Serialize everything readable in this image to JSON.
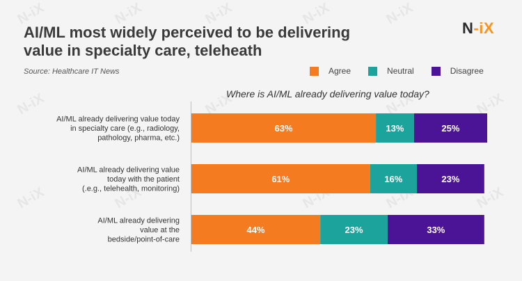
{
  "header": {
    "title_line1": "AI/ML most widely perceived to be delivering",
    "title_line2": "value in specialty care, teleheath",
    "brand_left": "N",
    "brand_right": "-iX",
    "source": "Source:  Healthcare IT News"
  },
  "watermark_text": "N-iX",
  "chart_data": {
    "type": "bar",
    "orientation": "horizontal",
    "stacked": true,
    "title": "Where is AI/ML already delivering value today?",
    "categories": [
      [
        "AI/ML already delivering value today",
        "in specialty care (e.g., radiology,",
        "pathology, pharma, etc.)"
      ],
      [
        "AI/ML already delivering value",
        "today with the patient",
        "(.e.g., telehealth, monitoring)"
      ],
      [
        "AI/ML already delivering",
        "value at the",
        "bedside/point-of-care"
      ]
    ],
    "series": [
      {
        "name": "Agree",
        "color": "#f47b20",
        "values": [
          63,
          61,
          44
        ],
        "labels": [
          "63%",
          "61%",
          "44%"
        ]
      },
      {
        "name": "Neutral",
        "color": "#1ba39c",
        "values": [
          13,
          16,
          23
        ],
        "labels": [
          "13%",
          "16%",
          "23%"
        ]
      },
      {
        "name": "Disagree",
        "color": "#4b1496",
        "values": [
          25,
          23,
          33
        ],
        "labels": [
          "25%",
          "23%",
          "33%"
        ]
      }
    ],
    "xlim": [
      0,
      101
    ],
    "legend_position": "top-right",
    "grid": false
  }
}
